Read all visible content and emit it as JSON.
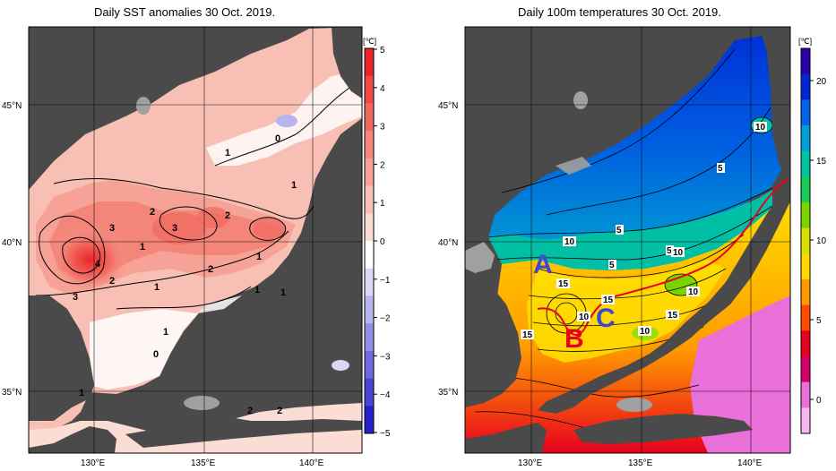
{
  "left_panel": {
    "title": "Daily SST anomalies 30 Oct. 2019.",
    "unit": "[℃]",
    "colorbar_ticks": [
      "5",
      "4",
      "3",
      "2",
      "1",
      "0",
      "−1",
      "−2",
      "−3",
      "−4",
      "−5"
    ],
    "colorbar_colors": [
      "#e8262a",
      "#ee4a43",
      "#f1685f",
      "#f3857a",
      "#f6a296",
      "#f8c0b4",
      "#fbddd4",
      "#ffffff",
      "#dad9f5",
      "#b7b4ee",
      "#938fe6",
      "#6f69de",
      "#4a44d5",
      "#2620cc"
    ],
    "contour_labels": [
      "0",
      "1",
      "1",
      "1",
      "2",
      "2",
      "3",
      "3",
      "3",
      "4",
      "2",
      "1",
      "1",
      "1",
      "2",
      "1",
      "1",
      "0",
      "1",
      "2",
      "2"
    ],
    "lat_labels": [
      "45°N",
      "40°N",
      "35°N"
    ],
    "lon_labels": [
      "130°E",
      "135°E",
      "140°E"
    ]
  },
  "right_panel": {
    "title": "Daily 100m temperatures 30 Oct. 2019.",
    "unit": "[℃]",
    "colorbar_ticks": [
      "20",
      "15",
      "10",
      "5",
      "0"
    ],
    "colorbar_colors": [
      "#2b00a8",
      "#0027d6",
      "#0064e8",
      "#009ed4",
      "#00c1a0",
      "#16cc54",
      "#7ad400",
      "#d7e000",
      "#ffd800",
      "#ff9a00",
      "#ff4a00",
      "#e8001e",
      "#d4006a",
      "#e870d8",
      "#f5b8f0"
    ],
    "contour_labels": [
      "10",
      "5",
      "10",
      "5",
      "5",
      "10",
      "15",
      "10",
      "15",
      "10",
      "15",
      "10",
      "15",
      "5"
    ],
    "region_labels": [
      "A",
      "B",
      "C"
    ],
    "lat_labels": [
      "45°N",
      "40°N",
      "35°N"
    ],
    "lon_labels": [
      "130°E",
      "135°E",
      "140°E"
    ]
  }
}
